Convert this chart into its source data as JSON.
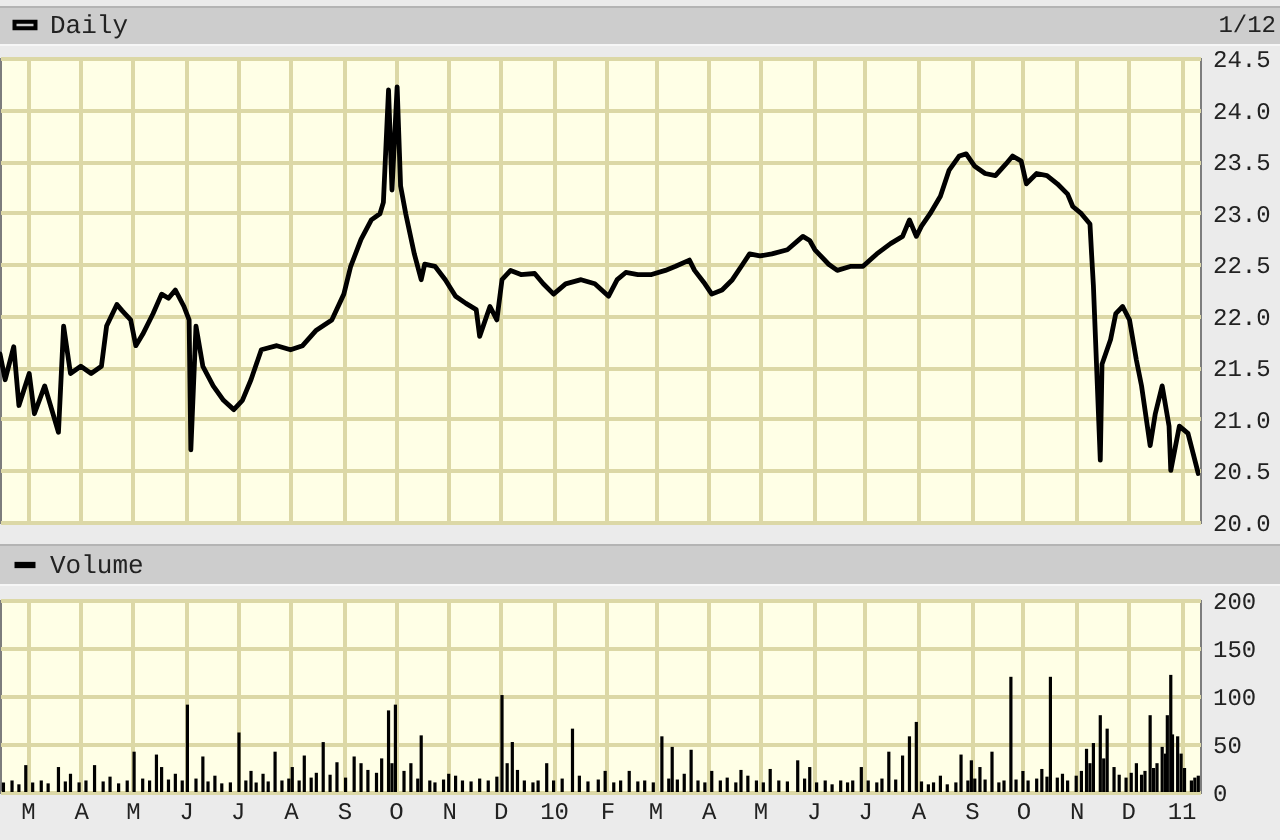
{
  "chart_data": [
    {
      "type": "line",
      "legend": "top left",
      "grid": true,
      "tick_labels": "y",
      "annotations": [
        "1/12"
      ],
      "xlim": [
        "2009-02-13",
        "2011-01-12"
      ],
      "xticks": [
        {
          "value": "2009-03",
          "label": null
        },
        {
          "value": "2009-04",
          "label": null
        },
        {
          "value": "2009-05",
          "label": null
        },
        {
          "value": "2009-06",
          "label": null
        },
        {
          "value": "2009-07",
          "label": null
        },
        {
          "value": "2009-08",
          "label": null
        },
        {
          "value": "2009-09",
          "label": null
        },
        {
          "value": "2009-10",
          "label": null
        },
        {
          "value": "2009-11",
          "label": null
        },
        {
          "value": "2009-12",
          "label": null
        },
        {
          "value": "2010-01",
          "label": null
        },
        {
          "value": "2010-02",
          "label": null
        },
        {
          "value": "2010-03",
          "label": null
        },
        {
          "value": "2010-04",
          "label": null
        },
        {
          "value": "2010-05",
          "label": null
        },
        {
          "value": "2010-06",
          "label": null
        },
        {
          "value": "2010-07",
          "label": null
        },
        {
          "value": "2010-08",
          "label": null
        },
        {
          "value": "2010-09",
          "label": null
        },
        {
          "value": "2010-10",
          "label": null
        },
        {
          "value": "2010-11",
          "label": null
        },
        {
          "value": "2010-12",
          "label": null
        },
        {
          "value": "2011-01",
          "label": null
        }
      ],
      "ylim": [
        20,
        24.5
      ],
      "yticks": [
        {
          "value": 20,
          "label": "20.0"
        },
        {
          "value": 20.5,
          "label": "20.5"
        },
        {
          "value": 21,
          "label": "21.0"
        },
        {
          "value": 21.5,
          "label": "21.5"
        },
        {
          "value": 22,
          "label": "22.0"
        },
        {
          "value": 22.5,
          "label": "22.5"
        },
        {
          "value": 23,
          "label": "23.0"
        },
        {
          "value": 23.5,
          "label": "23.5"
        },
        {
          "value": 24,
          "label": "24.0"
        },
        {
          "value": 24.5,
          "label": "24.5"
        }
      ],
      "x": [
        "2009-02-13",
        "2009-02-16",
        "2009-02-21",
        "2009-02-24",
        "2009-03-02",
        "2009-03-05",
        "2009-03-11",
        "2009-03-19",
        "2009-03-22",
        "2009-03-26",
        "2009-04-01",
        "2009-04-07",
        "2009-04-13",
        "2009-04-16",
        "2009-04-22",
        "2009-04-25",
        "2009-04-30",
        "2009-05-03",
        "2009-05-07",
        "2009-05-13",
        "2009-05-18",
        "2009-05-22",
        "2009-05-26",
        "2009-05-31",
        "2009-06-03",
        "2009-06-04",
        "2009-06-07",
        "2009-06-11",
        "2009-06-17",
        "2009-06-23",
        "2009-06-29",
        "2009-07-04",
        "2009-07-09",
        "2009-07-15",
        "2009-07-24",
        "2009-08-01",
        "2009-08-08",
        "2009-08-16",
        "2009-08-25",
        "2009-09-01",
        "2009-09-05",
        "2009-09-11",
        "2009-09-17",
        "2009-09-22",
        "2009-09-24",
        "2009-09-27",
        "2009-09-29",
        "2009-10-02",
        "2009-10-04",
        "2009-10-07",
        "2009-10-12",
        "2009-10-16",
        "2009-10-18",
        "2009-10-24",
        "2009-10-30",
        "2009-11-05",
        "2009-11-11",
        "2009-11-17",
        "2009-11-19",
        "2009-11-25",
        "2009-11-29",
        "2009-12-02",
        "2009-12-07",
        "2009-12-13",
        "2009-12-21",
        "2009-12-26",
        "2010-01-01",
        "2010-01-08",
        "2010-01-17",
        "2010-01-25",
        "2010-02-02",
        "2010-02-07",
        "2010-02-12",
        "2010-02-19",
        "2010-02-27",
        "2010-03-07",
        "2010-03-13",
        "2010-03-21",
        "2010-03-24",
        "2010-03-30",
        "2010-04-03",
        "2010-04-09",
        "2010-04-15",
        "2010-04-21",
        "2010-04-25",
        "2010-05-01",
        "2010-05-08",
        "2010-05-17",
        "2010-05-26",
        "2010-05-30",
        "2010-06-02",
        "2010-06-10",
        "2010-06-15",
        "2010-06-23",
        "2010-06-30",
        "2010-07-08",
        "2010-07-16",
        "2010-07-23",
        "2010-07-27",
        "2010-07-31",
        "2010-08-03",
        "2010-08-08",
        "2010-08-14",
        "2010-08-19",
        "2010-08-25",
        "2010-08-29",
        "2010-09-03",
        "2010-09-09",
        "2010-09-15",
        "2010-09-21",
        "2010-09-25",
        "2010-09-30",
        "2010-10-03",
        "2010-10-09",
        "2010-10-15",
        "2010-10-21",
        "2010-10-27",
        "2010-10-30",
        "2010-11-04",
        "2010-11-09",
        "2010-11-10",
        "2010-11-11",
        "2010-11-15",
        "2010-11-16",
        "2010-11-21",
        "2010-11-24",
        "2010-11-28",
        "2010-12-02",
        "2010-12-06",
        "2010-12-09",
        "2010-12-14",
        "2010-12-17",
        "2010-12-21",
        "2010-12-25",
        "2010-12-26",
        "2010-12-31",
        "2011-01-05",
        "2011-01-09",
        "2011-01-11"
      ],
      "series": [
        {
          "name": "Daily",
          "color": "#000000",
          "values": [
            21.63,
            21.38,
            21.7,
            21.13,
            21.44,
            21.05,
            21.32,
            20.87,
            21.9,
            21.44,
            21.51,
            21.44,
            21.51,
            21.9,
            22.11,
            22.05,
            21.96,
            21.71,
            21.82,
            22.02,
            22.21,
            22.17,
            22.25,
            22.09,
            21.96,
            20.7,
            21.9,
            21.51,
            21.32,
            21.18,
            21.09,
            21.18,
            21.38,
            21.67,
            21.71,
            21.67,
            21.71,
            21.86,
            21.96,
            22.21,
            22.48,
            22.74,
            22.93,
            22.99,
            23.1,
            24.19,
            23.22,
            24.22,
            23.26,
            22.99,
            22.6,
            22.35,
            22.5,
            22.48,
            22.35,
            22.19,
            22.12,
            22.06,
            21.8,
            22.09,
            21.96,
            22.35,
            22.44,
            22.4,
            22.41,
            22.31,
            22.21,
            22.31,
            22.35,
            22.31,
            22.19,
            22.35,
            22.42,
            22.4,
            22.4,
            22.44,
            22.48,
            22.54,
            22.44,
            22.31,
            22.21,
            22.25,
            22.35,
            22.5,
            22.6,
            22.58,
            22.6,
            22.64,
            22.77,
            22.73,
            22.64,
            22.5,
            22.44,
            22.48,
            22.48,
            22.6,
            22.7,
            22.77,
            22.93,
            22.77,
            22.87,
            22.99,
            23.16,
            23.41,
            23.55,
            23.57,
            23.45,
            23.38,
            23.36,
            23.47,
            23.55,
            23.5,
            23.28,
            23.38,
            23.36,
            23.28,
            23.18,
            23.06,
            22.99,
            22.89,
            22.58,
            22.29,
            20.6,
            21.53,
            21.77,
            22.02,
            22.09,
            21.96,
            21.57,
            21.32,
            20.74,
            21.05,
            21.32,
            20.93,
            20.5,
            20.93,
            20.86,
            20.6,
            20.47
          ]
        }
      ]
    },
    {
      "type": "bar",
      "legend": "top left",
      "grid": true,
      "xlim": [
        "2009-02-13",
        "2011-01-12"
      ],
      "xticks": [
        {
          "value": "2009-03",
          "label": "M"
        },
        {
          "value": "2009-04",
          "label": "A"
        },
        {
          "value": "2009-05",
          "label": "M"
        },
        {
          "value": "2009-06",
          "label": "J"
        },
        {
          "value": "2009-07",
          "label": "J"
        },
        {
          "value": "2009-08",
          "label": "A"
        },
        {
          "value": "2009-09",
          "label": "S"
        },
        {
          "value": "2009-10",
          "label": "O"
        },
        {
          "value": "2009-11",
          "label": "N"
        },
        {
          "value": "2009-12",
          "label": "D"
        },
        {
          "value": "2010-01",
          "label": "10"
        },
        {
          "value": "2010-02",
          "label": "F"
        },
        {
          "value": "2010-03",
          "label": "M"
        },
        {
          "value": "2010-04",
          "label": "A"
        },
        {
          "value": "2010-05",
          "label": "M"
        },
        {
          "value": "2010-06",
          "label": "J"
        },
        {
          "value": "2010-07",
          "label": "J"
        },
        {
          "value": "2010-08",
          "label": "A"
        },
        {
          "value": "2010-09",
          "label": "S"
        },
        {
          "value": "2010-10",
          "label": "O"
        },
        {
          "value": "2010-11",
          "label": "N"
        },
        {
          "value": "2010-12",
          "label": "D"
        },
        {
          "value": "2011-01",
          "label": "11"
        }
      ],
      "ylim": [
        0,
        200
      ],
      "yticks": [
        0,
        50,
        100,
        150,
        200
      ],
      "x": [
        "2009-02-15",
        "2009-02-20",
        "2009-02-24",
        "2009-02-28",
        "2009-03-04",
        "2009-03-09",
        "2009-03-13",
        "2009-03-19",
        "2009-03-23",
        "2009-03-26",
        "2009-03-31",
        "2009-04-04",
        "2009-04-09",
        "2009-04-14",
        "2009-04-18",
        "2009-04-23",
        "2009-04-28",
        "2009-05-02",
        "2009-05-07",
        "2009-05-11",
        "2009-05-15",
        "2009-05-18",
        "2009-05-22",
        "2009-05-26",
        "2009-05-30",
        "2009-06-02",
        "2009-06-07",
        "2009-06-11",
        "2009-06-14",
        "2009-06-18",
        "2009-06-22",
        "2009-06-27",
        "2009-07-02",
        "2009-07-06",
        "2009-07-09",
        "2009-07-12",
        "2009-07-16",
        "2009-07-19",
        "2009-07-23",
        "2009-07-27",
        "2009-07-31",
        "2009-08-02",
        "2009-08-06",
        "2009-08-09",
        "2009-08-13",
        "2009-08-16",
        "2009-08-20",
        "2009-08-24",
        "2009-08-28",
        "2009-09-02",
        "2009-09-07",
        "2009-09-11",
        "2009-09-15",
        "2009-09-20",
        "2009-09-23",
        "2009-09-27",
        "2009-09-29",
        "2009-10-01",
        "2009-10-06",
        "2009-10-10",
        "2009-10-14",
        "2009-10-16",
        "2009-10-21",
        "2009-10-24",
        "2009-10-29",
        "2009-11-01",
        "2009-11-05",
        "2009-11-09",
        "2009-11-14",
        "2009-11-19",
        "2009-11-24",
        "2009-11-29",
        "2009-12-02",
        "2009-12-05",
        "2009-12-08",
        "2009-12-11",
        "2009-12-15",
        "2009-12-20",
        "2009-12-23",
        "2009-12-28",
        "2010-01-01",
        "2010-01-06",
        "2010-01-12",
        "2010-01-16",
        "2010-01-21",
        "2010-01-27",
        "2010-01-31",
        "2010-02-05",
        "2010-02-09",
        "2010-02-14",
        "2010-02-19",
        "2010-02-23",
        "2010-02-28",
        "2010-03-05",
        "2010-03-09",
        "2010-03-11",
        "2010-03-14",
        "2010-03-18",
        "2010-03-22",
        "2010-03-26",
        "2010-03-30",
        "2010-04-03",
        "2010-04-08",
        "2010-04-12",
        "2010-04-17",
        "2010-04-20",
        "2010-04-24",
        "2010-04-29",
        "2010-05-03",
        "2010-05-07",
        "2010-05-12",
        "2010-05-17",
        "2010-05-23",
        "2010-05-27",
        "2010-05-30",
        "2010-06-03",
        "2010-06-08",
        "2010-06-12",
        "2010-06-17",
        "2010-06-21",
        "2010-06-24",
        "2010-06-29",
        "2010-07-03",
        "2010-07-08",
        "2010-07-11",
        "2010-07-15",
        "2010-07-19",
        "2010-07-23",
        "2010-07-27",
        "2010-07-31",
        "2010-08-03",
        "2010-08-07",
        "2010-08-10",
        "2010-08-14",
        "2010-08-18",
        "2010-08-23",
        "2010-08-26",
        "2010-08-30",
        "2010-09-01",
        "2010-09-03",
        "2010-09-06",
        "2010-09-09",
        "2010-09-13",
        "2010-09-17",
        "2010-09-20",
        "2010-09-24",
        "2010-09-27",
        "2010-10-01",
        "2010-10-04",
        "2010-10-09",
        "2010-10-12",
        "2010-10-15",
        "2010-10-17",
        "2010-10-21",
        "2010-10-24",
        "2010-10-27",
        "2010-11-01",
        "2010-11-04",
        "2010-11-07",
        "2010-11-09",
        "2010-11-11",
        "2010-11-15",
        "2010-11-17",
        "2010-11-19",
        "2010-11-23",
        "2010-11-26",
        "2010-11-30",
        "2010-12-03",
        "2010-12-06",
        "2010-12-09",
        "2010-12-11",
        "2010-12-14",
        "2010-12-16",
        "2010-12-18",
        "2010-12-21",
        "2010-12-23",
        "2010-12-24",
        "2010-12-26",
        "2010-12-27",
        "2010-12-30",
        "2011-01-01",
        "2011-01-03",
        "2011-01-07",
        "2011-01-09",
        "2011-01-11"
      ],
      "series": [
        {
          "name": "Volume",
          "color": "#000000",
          "values": [
            10,
            12,
            8,
            28,
            10,
            12,
            9,
            26,
            11,
            19,
            10,
            12,
            28,
            11,
            16,
            9,
            12,
            42,
            14,
            12,
            39,
            26,
            13,
            19,
            12,
            91,
            14,
            37,
            11,
            17,
            9,
            10,
            62,
            12,
            22,
            10,
            19,
            11,
            42,
            12,
            14,
            26,
            12,
            38,
            15,
            20,
            52,
            18,
            31,
            15,
            37,
            30,
            23,
            20,
            35,
            85,
            30,
            91,
            22,
            30,
            14,
            59,
            12,
            10,
            13,
            19,
            17,
            12,
            11,
            14,
            12,
            16,
            101,
            30,
            52,
            23,
            12,
            10,
            12,
            30,
            12,
            14,
            66,
            17,
            11,
            13,
            22,
            10,
            12,
            22,
            11,
            12,
            10,
            58,
            14,
            47,
            13,
            19,
            44,
            12,
            10,
            22,
            12,
            15,
            10,
            23,
            17,
            12,
            10,
            24,
            12,
            11,
            33,
            14,
            26,
            10,
            12,
            8,
            12,
            10,
            12,
            26,
            12,
            10,
            14,
            42,
            13,
            38,
            58,
            73,
            11,
            8,
            10,
            17,
            8,
            10,
            39,
            12,
            33,
            14,
            26,
            13,
            42,
            10,
            12,
            120,
            13,
            22,
            12,
            14,
            24,
            16,
            120,
            15,
            19,
            12,
            17,
            22,
            45,
            30,
            51,
            80,
            35,
            66,
            26,
            18,
            15,
            20,
            30,
            18,
            22,
            80,
            25,
            30,
            47,
            40,
            80,
            122,
            60,
            58,
            40,
            25,
            12,
            15,
            17
          ]
        }
      ]
    }
  ]
}
